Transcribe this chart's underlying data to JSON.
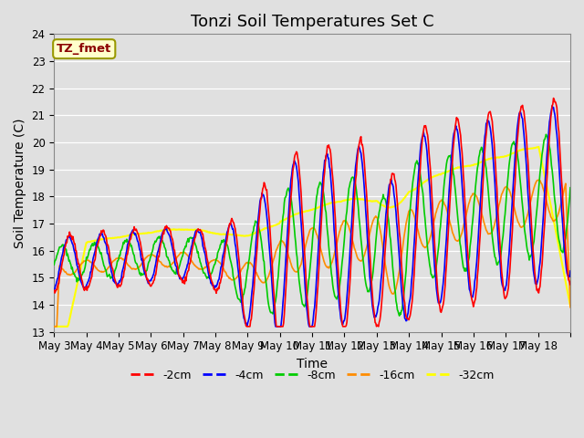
{
  "title": "Tonzi Soil Temperatures Set C",
  "xlabel": "Time",
  "ylabel": "Soil Temperature (C)",
  "ylim": [
    13.0,
    24.0
  ],
  "yticks": [
    13.0,
    14.0,
    15.0,
    16.0,
    17.0,
    18.0,
    19.0,
    20.0,
    21.0,
    22.0,
    23.0,
    24.0
  ],
  "xtick_labels": [
    "May 3",
    "May 4",
    "May 5",
    "May 6",
    "May 7",
    "May 8",
    "May 9",
    "May 10",
    "May 11",
    "May 12",
    "May 13",
    "May 14",
    "May 15",
    "May 16",
    "May 17",
    "May 18"
  ],
  "colors": {
    "-2cm": "#FF0000",
    "-4cm": "#0000FF",
    "-8cm": "#00CC00",
    "-16cm": "#FF8C00",
    "-32cm": "#FFFF00"
  },
  "legend_label": "TZ_fmet",
  "legend_bg": "#FFFFCC",
  "legend_border": "#999900",
  "background_color": "#E0E0E0",
  "title_fontsize": 13,
  "axis_fontsize": 10,
  "tick_fontsize": 8.5,
  "line_width": 1.2
}
